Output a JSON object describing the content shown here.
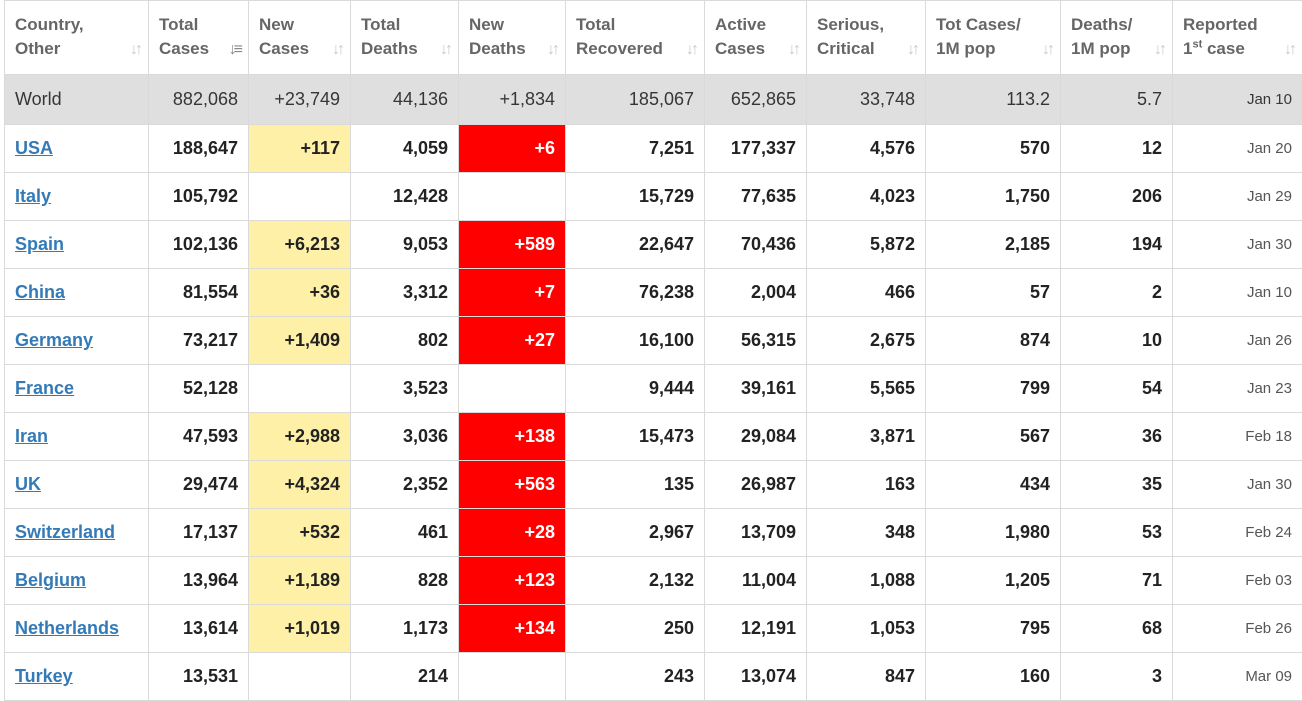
{
  "headers": [
    {
      "l1": "Country,",
      "l2": "Other"
    },
    {
      "l1": "Total",
      "l2": "Cases"
    },
    {
      "l1": "New",
      "l2": "Cases"
    },
    {
      "l1": "Total",
      "l2": "Deaths"
    },
    {
      "l1": "New",
      "l2": "Deaths"
    },
    {
      "l1": "Total",
      "l2": "Recovered"
    },
    {
      "l1": "Active",
      "l2": "Cases"
    },
    {
      "l1": "Serious,",
      "l2": "Critical"
    },
    {
      "l1": "Tot Cases/",
      "l2": "1M pop"
    },
    {
      "l1": "Deaths/",
      "l2": "1M pop"
    },
    {
      "l1": "Reported",
      "l2a": "1",
      "l2sup": "st",
      "l2b": " case"
    }
  ],
  "sort_icons": {
    "default": "↓↑",
    "active": "↓≡"
  },
  "world": {
    "country": "World",
    "total_cases": "882,068",
    "new_cases": "+23,749",
    "total_deaths": "44,136",
    "new_deaths": "+1,834",
    "total_recovered": "185,067",
    "active_cases": "652,865",
    "serious": "33,748",
    "cases_per_1m": "113.2",
    "deaths_per_1m": "5.7",
    "first_case": "Jan 10"
  },
  "rows": [
    {
      "country": "USA",
      "total_cases": "188,647",
      "new_cases": "+117",
      "total_deaths": "4,059",
      "new_deaths": "+6",
      "total_recovered": "7,251",
      "active_cases": "177,337",
      "serious": "4,576",
      "cases_per_1m": "570",
      "deaths_per_1m": "12",
      "first_case": "Jan 20"
    },
    {
      "country": "Italy",
      "total_cases": "105,792",
      "new_cases": "",
      "total_deaths": "12,428",
      "new_deaths": "",
      "total_recovered": "15,729",
      "active_cases": "77,635",
      "serious": "4,023",
      "cases_per_1m": "1,750",
      "deaths_per_1m": "206",
      "first_case": "Jan 29"
    },
    {
      "country": "Spain",
      "total_cases": "102,136",
      "new_cases": "+6,213",
      "total_deaths": "9,053",
      "new_deaths": "+589",
      "total_recovered": "22,647",
      "active_cases": "70,436",
      "serious": "5,872",
      "cases_per_1m": "2,185",
      "deaths_per_1m": "194",
      "first_case": "Jan 30"
    },
    {
      "country": "China",
      "total_cases": "81,554",
      "new_cases": "+36",
      "total_deaths": "3,312",
      "new_deaths": "+7",
      "total_recovered": "76,238",
      "active_cases": "2,004",
      "serious": "466",
      "cases_per_1m": "57",
      "deaths_per_1m": "2",
      "first_case": "Jan 10"
    },
    {
      "country": "Germany",
      "total_cases": "73,217",
      "new_cases": "+1,409",
      "total_deaths": "802",
      "new_deaths": "+27",
      "total_recovered": "16,100",
      "active_cases": "56,315",
      "serious": "2,675",
      "cases_per_1m": "874",
      "deaths_per_1m": "10",
      "first_case": "Jan 26"
    },
    {
      "country": "France",
      "total_cases": "52,128",
      "new_cases": "",
      "total_deaths": "3,523",
      "new_deaths": "",
      "total_recovered": "9,444",
      "active_cases": "39,161",
      "serious": "5,565",
      "cases_per_1m": "799",
      "deaths_per_1m": "54",
      "first_case": "Jan 23"
    },
    {
      "country": "Iran",
      "total_cases": "47,593",
      "new_cases": "+2,988",
      "total_deaths": "3,036",
      "new_deaths": "+138",
      "total_recovered": "15,473",
      "active_cases": "29,084",
      "serious": "3,871",
      "cases_per_1m": "567",
      "deaths_per_1m": "36",
      "first_case": "Feb 18"
    },
    {
      "country": "UK",
      "total_cases": "29,474",
      "new_cases": "+4,324",
      "total_deaths": "2,352",
      "new_deaths": "+563",
      "total_recovered": "135",
      "active_cases": "26,987",
      "serious": "163",
      "cases_per_1m": "434",
      "deaths_per_1m": "35",
      "first_case": "Jan 30"
    },
    {
      "country": "Switzerland",
      "total_cases": "17,137",
      "new_cases": "+532",
      "total_deaths": "461",
      "new_deaths": "+28",
      "total_recovered": "2,967",
      "active_cases": "13,709",
      "serious": "348",
      "cases_per_1m": "1,980",
      "deaths_per_1m": "53",
      "first_case": "Feb 24"
    },
    {
      "country": "Belgium",
      "total_cases": "13,964",
      "new_cases": "+1,189",
      "total_deaths": "828",
      "new_deaths": "+123",
      "total_recovered": "2,132",
      "active_cases": "11,004",
      "serious": "1,088",
      "cases_per_1m": "1,205",
      "deaths_per_1m": "71",
      "first_case": "Feb 03"
    },
    {
      "country": "Netherlands",
      "total_cases": "13,614",
      "new_cases": "+1,019",
      "total_deaths": "1,173",
      "new_deaths": "+134",
      "total_recovered": "250",
      "active_cases": "12,191",
      "serious": "1,053",
      "cases_per_1m": "795",
      "deaths_per_1m": "68",
      "first_case": "Feb 26"
    },
    {
      "country": "Turkey",
      "total_cases": "13,531",
      "new_cases": "",
      "total_deaths": "214",
      "new_deaths": "",
      "total_recovered": "243",
      "active_cases": "13,074",
      "serious": "847",
      "cases_per_1m": "160",
      "deaths_per_1m": "3",
      "first_case": "Mar 09"
    }
  ],
  "colors": {
    "new_cases_highlight": "#fff0a8",
    "new_deaths_highlight": "#ff0000",
    "link": "#337ab7",
    "world_row_bg": "#dfdfdf"
  }
}
